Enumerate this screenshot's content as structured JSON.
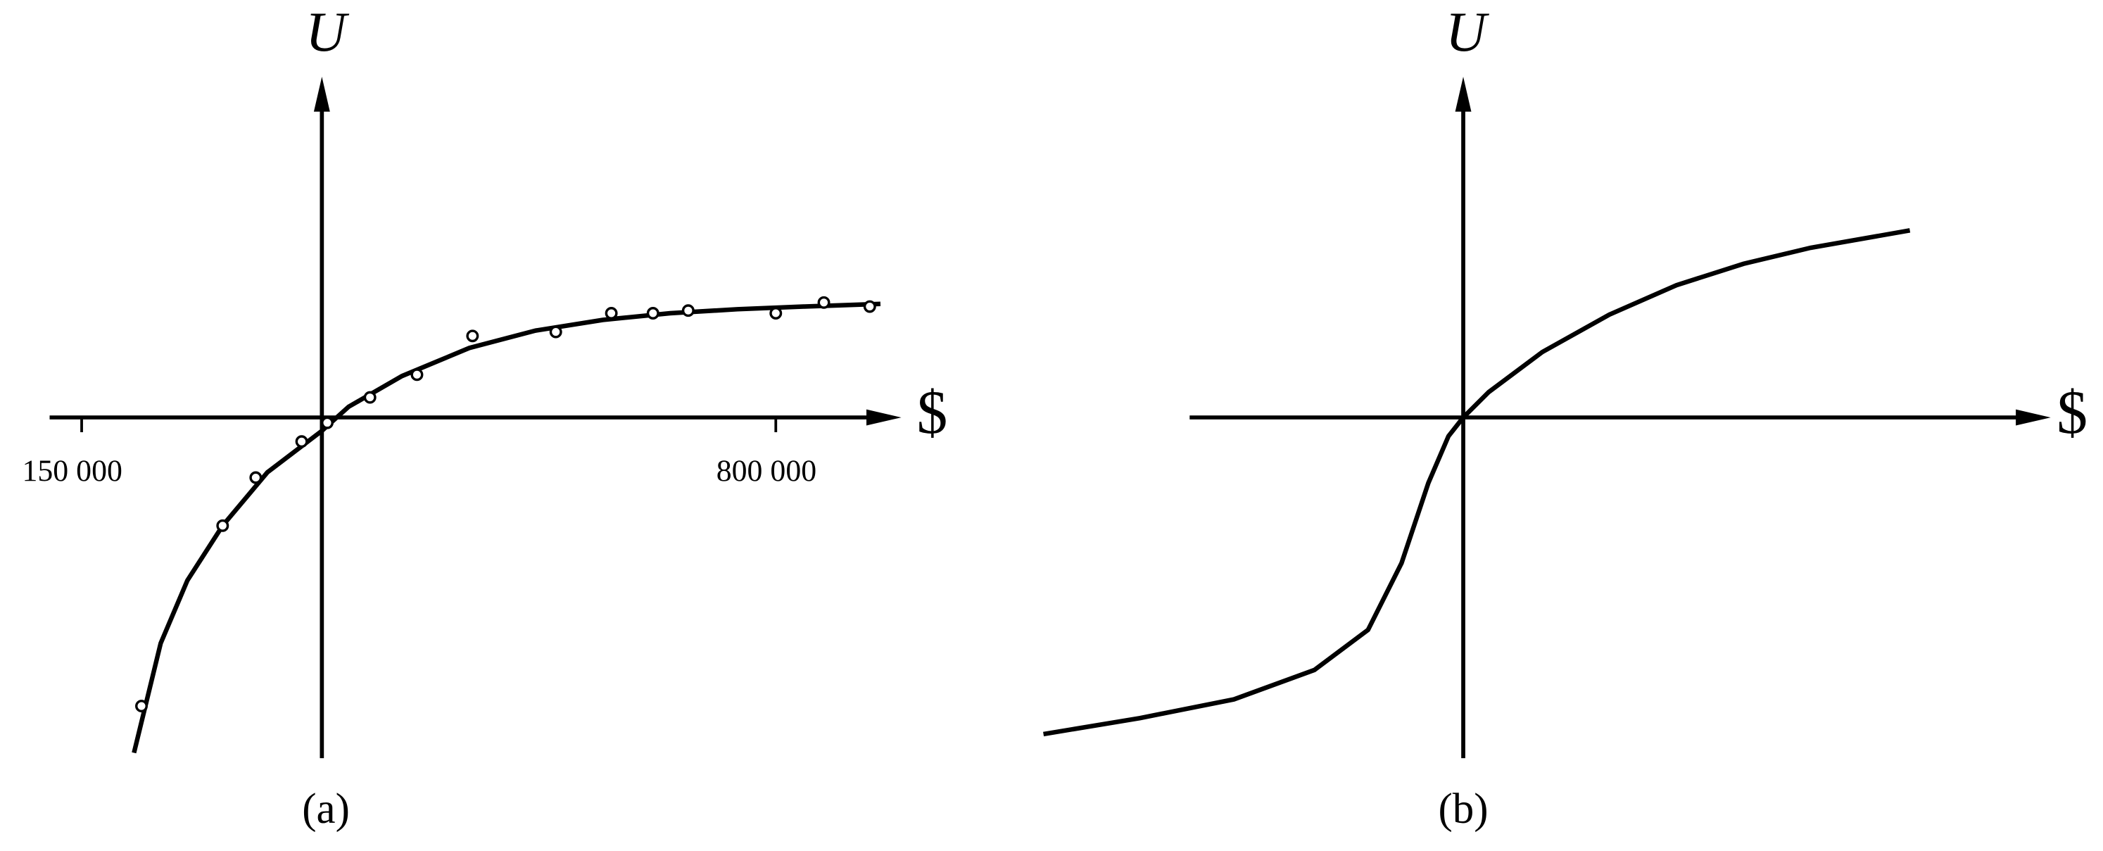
{
  "chart_data": [
    {
      "type": "scatter",
      "color": "#000000",
      "xlabel": "$",
      "ylabel": "U",
      "caption": "(a)",
      "xlim": [
        120000,
        915000
      ],
      "ylim": [
        -2.55,
        2.55
      ],
      "xticks": [
        {
          "value": 150000,
          "label": "150 000"
        },
        {
          "value": 800000,
          "label": "800 000"
        }
      ],
      "points": {
        "x": [
          206000,
          282000,
          313000,
          356000,
          380000,
          420000,
          464000,
          516000,
          594000,
          646000,
          685000,
          718000,
          800000,
          845000,
          888000
        ],
        "y": [
          -2.16,
          -0.81,
          -0.45,
          -0.18,
          -0.04,
          0.15,
          0.32,
          0.61,
          0.64,
          0.78,
          0.78,
          0.8,
          0.78,
          0.86,
          0.83
        ]
      },
      "curve": {
        "x": [
          199000,
          224000,
          249000,
          282000,
          324000,
          375000,
          400000,
          450000,
          513000,
          575000,
          638000,
          701000,
          764000,
          826000,
          898000
        ],
        "y": [
          -2.51,
          -1.69,
          -1.22,
          -0.81,
          -0.41,
          -0.1,
          0.08,
          0.31,
          0.52,
          0.65,
          0.73,
          0.78,
          0.81,
          0.83,
          0.85
        ]
      }
    },
    {
      "type": "line",
      "color": "#000000",
      "xlabel": "$",
      "ylabel": "U",
      "caption": "(b)",
      "xlim": [
        -3.2,
        4.4
      ],
      "ylim": [
        -2.55,
        2.55
      ],
      "curve": {
        "x": [
          -3.13,
          -2.41,
          -1.71,
          -1.11,
          -0.71,
          -0.46,
          -0.26,
          -0.11,
          0,
          0.19,
          0.59,
          1.09,
          1.59,
          2.09,
          2.59,
          3.33
        ],
        "y": [
          -2.37,
          -2.25,
          -2.11,
          -1.89,
          -1.59,
          -1.09,
          -0.49,
          -0.14,
          0,
          0.19,
          0.49,
          0.77,
          0.99,
          1.15,
          1.27,
          1.4
        ]
      }
    }
  ]
}
